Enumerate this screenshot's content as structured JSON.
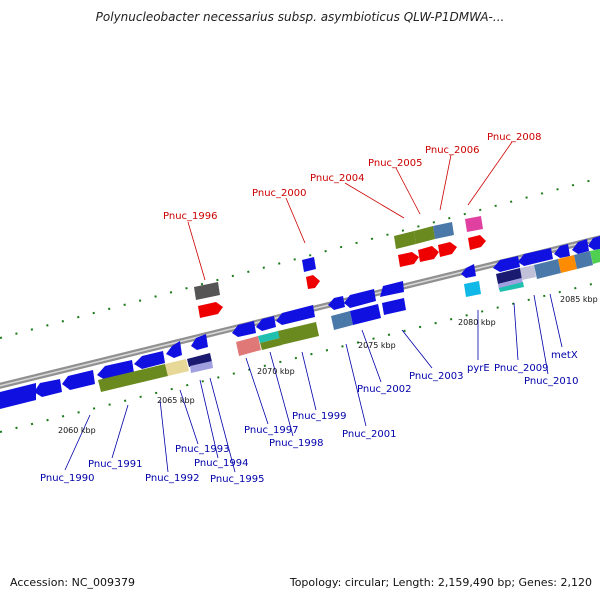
{
  "title": "Polynucleobacter necessarius subsp. asymbioticus QLW-P1DMWA-...",
  "accession": "Accession: NC_009379",
  "stats": "Topology: circular; Length: 2,159,490 bp; Genes: 2,120",
  "colors": {
    "blue": "#1010e0",
    "red": "#ee0000",
    "green": "#6a8a20",
    "steel": "#4a78a8",
    "gray": "#555555",
    "pink": "#e04080",
    "cyan": "#10b8e8",
    "tan": "#e8d898",
    "salmon": "#e07878",
    "teal": "#20c0b0",
    "orange": "#ff8c00",
    "lime": "#50d050",
    "navy": "#1a1a70",
    "lavender": "#a0a0e0",
    "backbone": "#909090",
    "tick": "#1a7a1a"
  },
  "kbp_labels": [
    "2060 kbp",
    "2065 kbp",
    "2070 kbp",
    "2075 kbp",
    "2080 kbp",
    "2085 kbp"
  ],
  "upper_labels": [
    "Pnuc_1996",
    "Pnuc_2000",
    "Pnuc_2004",
    "Pnuc_2005",
    "Pnuc_2006",
    "Pnuc_2008"
  ],
  "lower_labels": [
    "Pnuc_1990",
    "Pnuc_1991",
    "Pnuc_1992",
    "Pnuc_1993",
    "Pnuc_1994",
    "Pnuc_1995",
    "Pnuc_1997",
    "Pnuc_1998",
    "Pnuc_1999",
    "Pnuc_2001",
    "Pnuc_2002",
    "Pnuc_2003",
    "pyrE",
    "Pnuc_2009",
    "Pnuc_2010",
    "metX"
  ]
}
